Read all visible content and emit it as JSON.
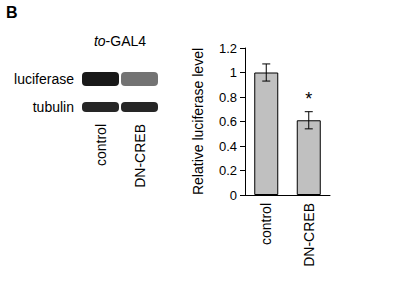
{
  "panel_label": "B",
  "blot": {
    "title": "to-GAL4",
    "rows": [
      "luciferase",
      "tubulin"
    ],
    "lanes": [
      "control",
      "DN-CREB"
    ]
  },
  "chart_data": {
    "type": "bar",
    "categories": [
      "control",
      "DN-CREB"
    ],
    "values": [
      1.0,
      0.61
    ],
    "errors": [
      0.07,
      0.07
    ],
    "color": "#c0c0c0",
    "y_label": "Relative luciferase level",
    "ylim": [
      0,
      1.2
    ],
    "yticks": [
      0,
      0.2,
      0.4,
      0.6,
      0.8,
      1,
      1.2
    ],
    "annotations": [
      {
        "category": "DN-CREB",
        "text": "*"
      }
    ],
    "grid": false
  }
}
